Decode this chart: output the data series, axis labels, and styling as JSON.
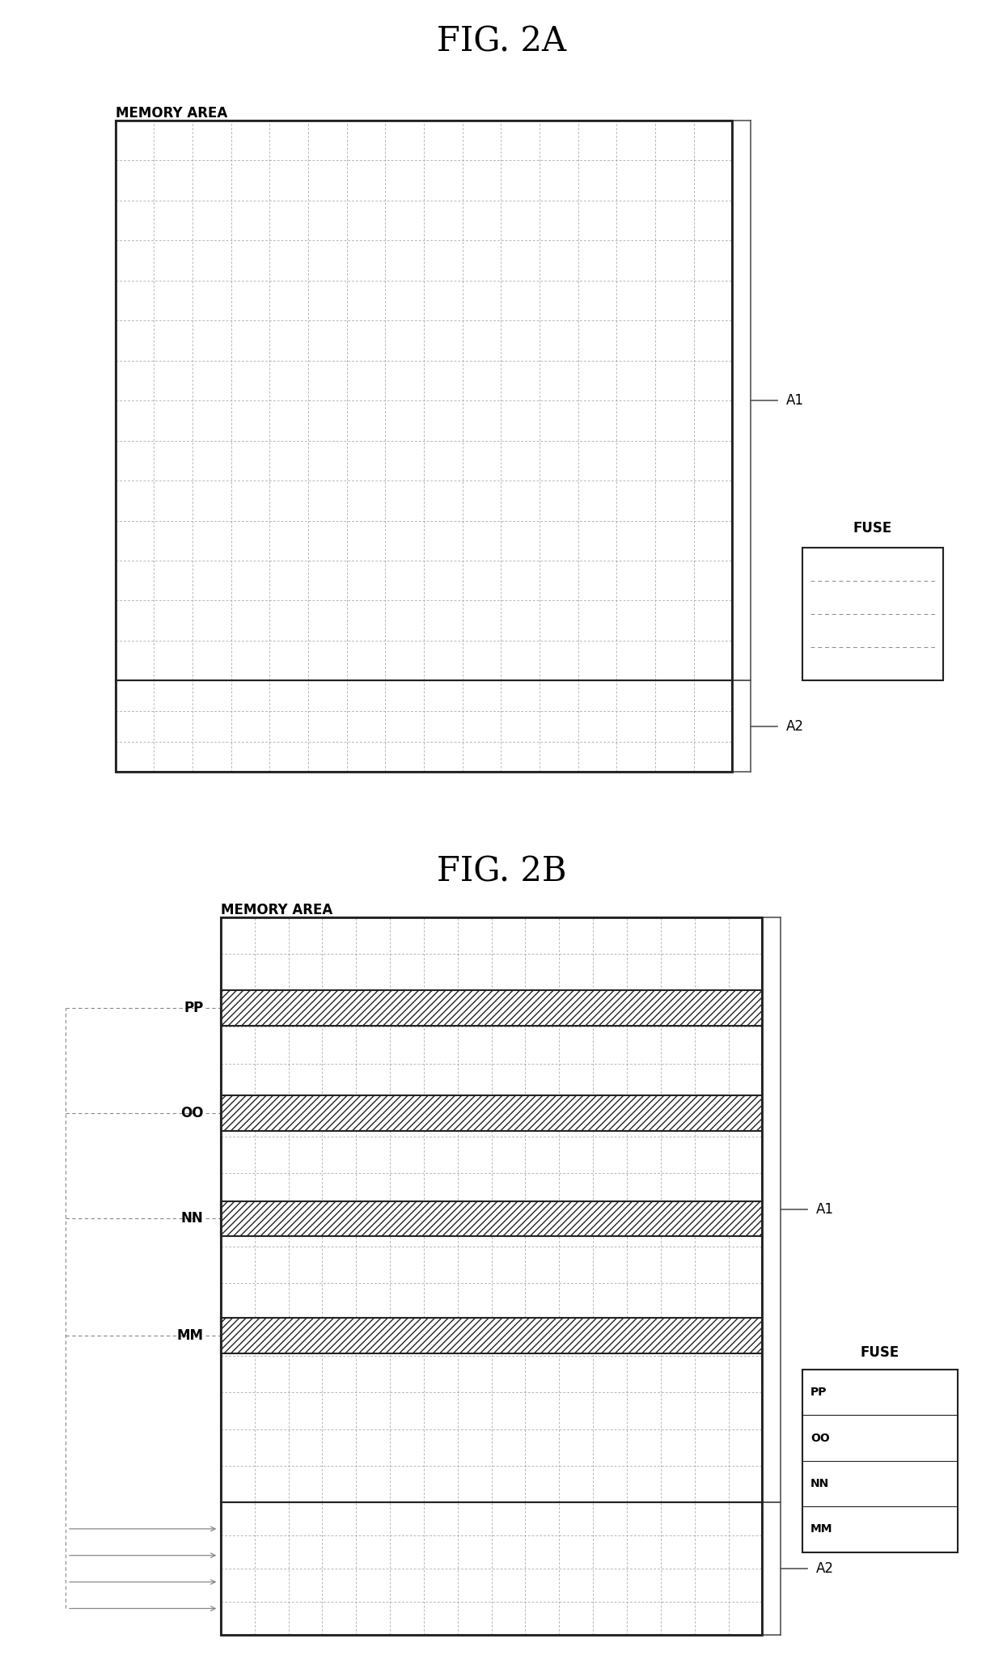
{
  "fig_title_a": "FIG. 2A",
  "fig_title_b": "FIG. 2B",
  "memory_area_label": "MEMORY AREA",
  "fuse_label": "FUSE",
  "a1_label": "A1",
  "a2_label": "A2",
  "fuse_rows_2b": [
    "PP",
    "OO",
    "NN",
    "MM"
  ],
  "bg_color": "#ffffff",
  "grid_color": "#999999",
  "border_color": "#222222",
  "dashed_color": "#888888",
  "title_fontsize": 30,
  "label_fontsize": 12,
  "small_fontsize": 10
}
